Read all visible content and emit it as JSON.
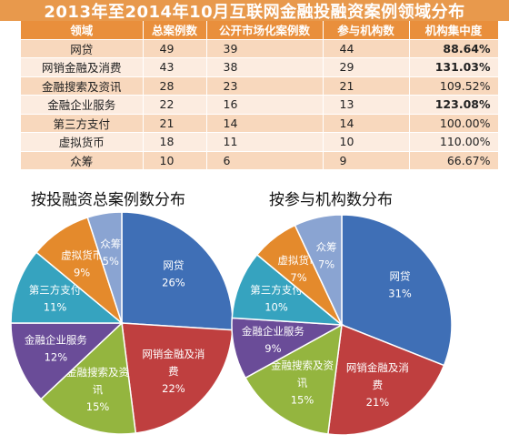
{
  "title": "2013年至2014年10月互联网金融投融资案例领域分布",
  "table": {
    "headers": [
      "领域",
      "总案例数",
      "公开市场化案例数",
      "参与机构数",
      "机构集中度"
    ],
    "rows": [
      [
        "网贷",
        "49",
        "39",
        "44",
        "88.64%"
      ],
      [
        "网销金融及消费",
        "43",
        "38",
        "29",
        "131.03%"
      ],
      [
        "金融搜索及资讯",
        "28",
        "23",
        "21",
        "109.52%"
      ],
      [
        "金融企业服务",
        "22",
        "16",
        "13",
        "123.08%"
      ],
      [
        "第三方支付",
        "21",
        "14",
        "14",
        "100.00%"
      ],
      [
        "虚拟货币",
        "18",
        "11",
        "10",
        "110.00%"
      ],
      [
        "众筹",
        "10",
        "6",
        "9",
        "66.67%"
      ]
    ],
    "bold_concentration_rows": [
      0,
      1,
      3
    ]
  },
  "colors": {
    "title_band": "#e8994c",
    "header": "#e98f3c",
    "row_odd": "#f8d8bd",
    "row_even": "#fcece0",
    "slices": [
      "#3f6fb6",
      "#bf3f3f",
      "#94b53f",
      "#6a4c98",
      "#36a3bf",
      "#e48a2c",
      "#8aa4d2"
    ]
  },
  "chart_data": [
    {
      "type": "pie",
      "title": "按投融资总案例数分布",
      "categories": [
        "网贷",
        "网销金融及消费",
        "金融搜索及资讯",
        "金融企业服务",
        "第三方支付",
        "虚拟货币",
        "众筹"
      ],
      "values": [
        26,
        22,
        15,
        12,
        11,
        9,
        5
      ],
      "value_labels": [
        "26%",
        "22%",
        "15%",
        "12%",
        "11%",
        "9%",
        "5%"
      ]
    },
    {
      "type": "pie",
      "title": "按参与机构数分布",
      "categories": [
        "网贷",
        "网销金融及消费",
        "金融搜索及资讯",
        "金融企业服务",
        "第三方支付",
        "虚拟货币",
        "众筹"
      ],
      "values": [
        31,
        21,
        15,
        9,
        10,
        7,
        7
      ],
      "value_labels": [
        "31%",
        "21%",
        "15%",
        "9%",
        "10%",
        "7%",
        "7%"
      ]
    }
  ]
}
